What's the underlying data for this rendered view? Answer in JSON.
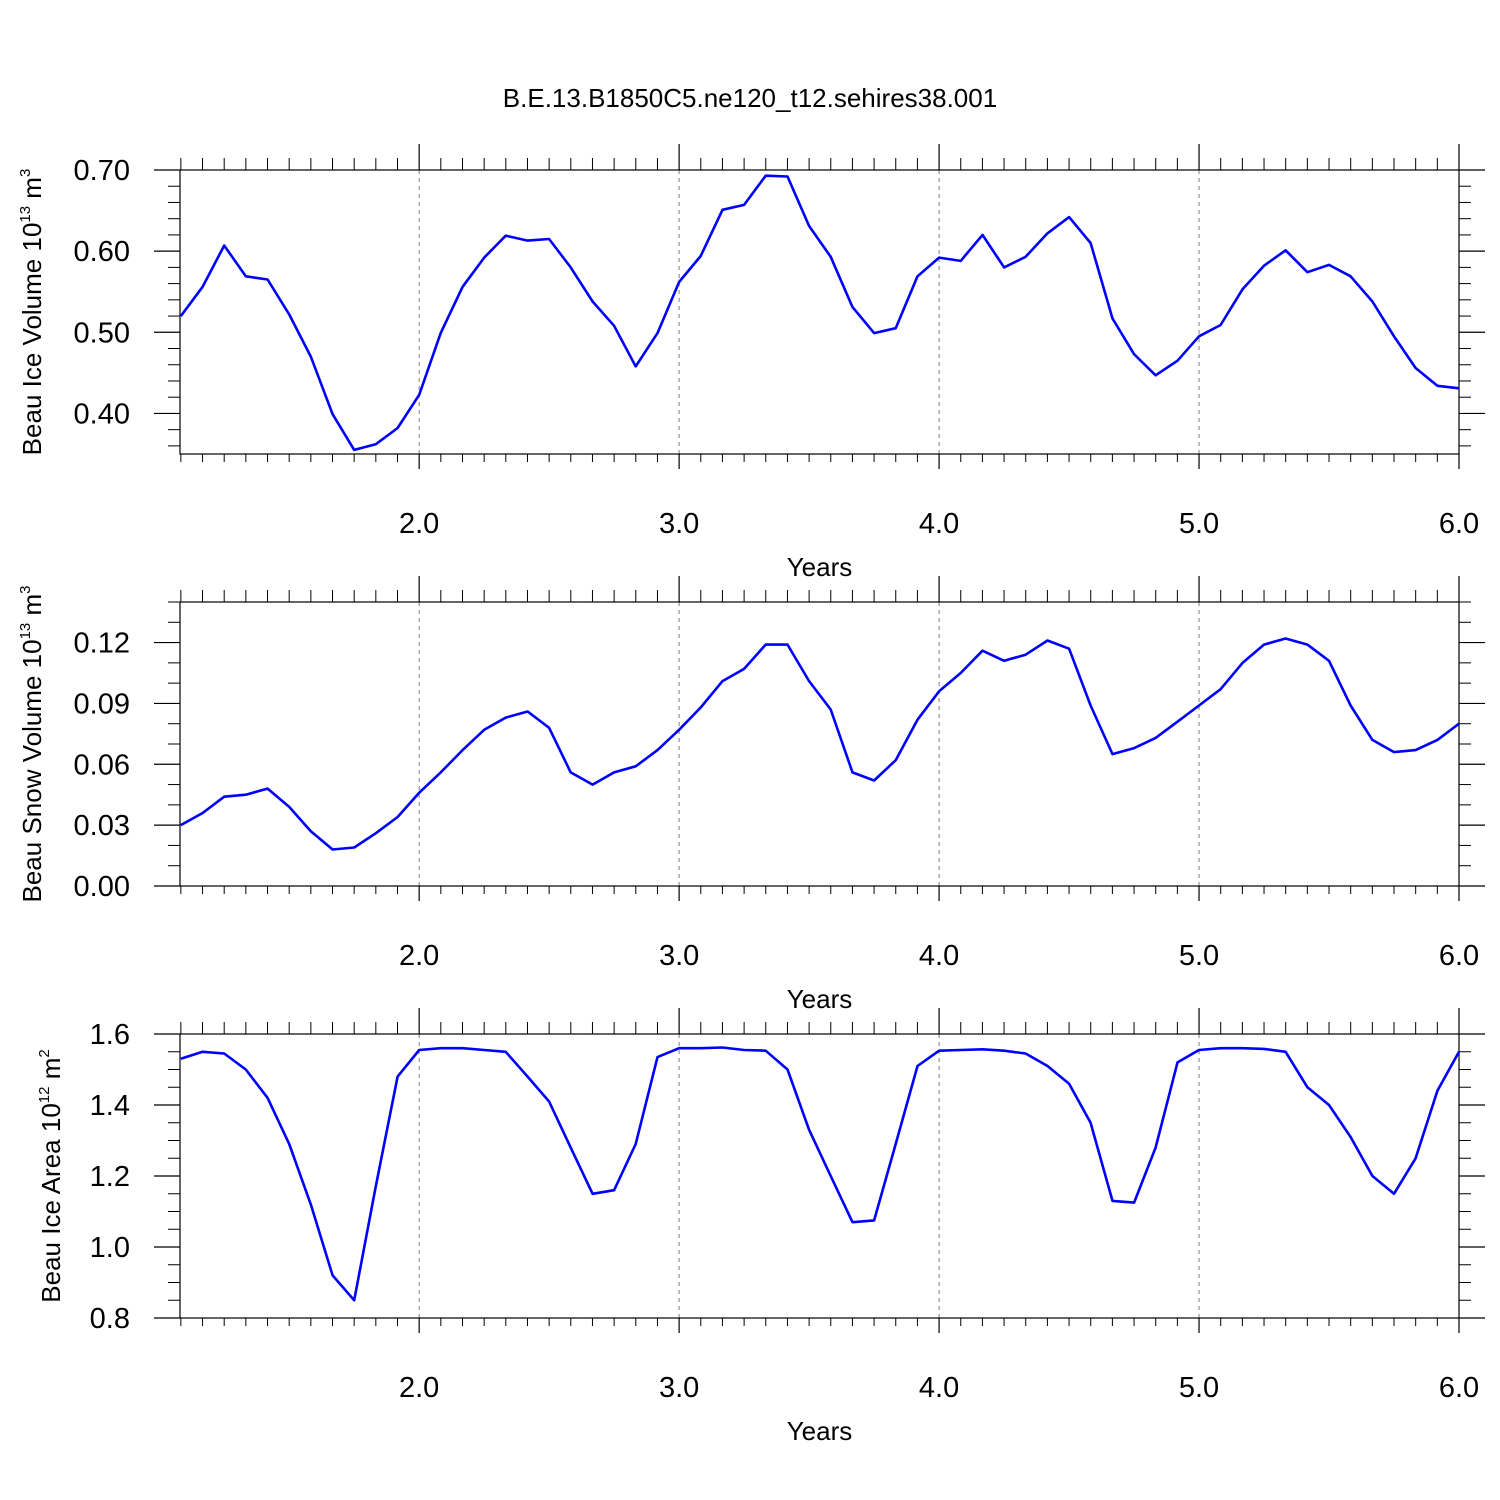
{
  "figure_title": "B.E.13.B1850C5.ne120_t12.sehires38.001",
  "chart_data": [
    {
      "type": "line",
      "ylabel": "Beau Ice Volume",
      "ylabel_unit_base": "10",
      "ylabel_unit_exp": "13",
      "ylabel_unit_m": "m",
      "ylabel_unit_m_exp": "3",
      "xlabel": "Years",
      "xlim": [
        1.08,
        6.0
      ],
      "ylim": [
        0.35,
        0.7
      ],
      "xticks": [
        2.0,
        3.0,
        4.0,
        5.0,
        6.0
      ],
      "xtick_labels": [
        "2.0",
        "3.0",
        "4.0",
        "5.0",
        "6.0"
      ],
      "yticks": [
        0.4,
        0.5,
        0.6,
        0.7
      ],
      "ytick_labels": [
        "0.40",
        "0.50",
        "0.60",
        "0.70"
      ],
      "y_minor_step": 0.02,
      "grid": "vertical dashed at major x ticks",
      "color": "#0000ff",
      "x": [
        1.083,
        1.167,
        1.25,
        1.333,
        1.417,
        1.5,
        1.583,
        1.667,
        1.75,
        1.833,
        1.917,
        2.0,
        2.083,
        2.167,
        2.25,
        2.333,
        2.417,
        2.5,
        2.583,
        2.667,
        2.75,
        2.833,
        2.917,
        3.0,
        3.083,
        3.167,
        3.25,
        3.333,
        3.417,
        3.5,
        3.583,
        3.667,
        3.75,
        3.833,
        3.917,
        4.0,
        4.083,
        4.167,
        4.25,
        4.333,
        4.417,
        4.5,
        4.583,
        4.667,
        4.75,
        4.833,
        4.917,
        5.0,
        5.083,
        5.167,
        5.25,
        5.333,
        5.417,
        5.5,
        5.583,
        5.667,
        5.75,
        5.833,
        5.917,
        6.0
      ],
      "values": [
        0.52,
        0.556,
        0.607,
        0.569,
        0.565,
        0.522,
        0.47,
        0.399,
        0.355,
        0.362,
        0.382,
        0.423,
        0.499,
        0.556,
        0.592,
        0.619,
        0.613,
        0.615,
        0.58,
        0.538,
        0.508,
        0.458,
        0.499,
        0.562,
        0.594,
        0.651,
        0.657,
        0.693,
        0.692,
        0.631,
        0.593,
        0.531,
        0.499,
        0.505,
        0.569,
        0.592,
        0.588,
        0.62,
        0.58,
        0.593,
        0.622,
        0.642,
        0.61,
        0.517,
        0.473,
        0.447,
        0.465,
        0.495,
        0.509,
        0.553,
        0.582,
        0.601,
        0.574,
        0.583,
        0.569,
        0.538,
        0.495,
        0.456,
        0.434,
        0.431
      ]
    },
    {
      "type": "line",
      "ylabel": "Beau Snow Volume",
      "ylabel_unit_base": "10",
      "ylabel_unit_exp": "13",
      "ylabel_unit_m": "m",
      "ylabel_unit_m_exp": "3",
      "xlabel": "Years",
      "xlim": [
        1.08,
        6.0
      ],
      "ylim": [
        0.0,
        0.14
      ],
      "xticks": [
        2.0,
        3.0,
        4.0,
        5.0,
        6.0
      ],
      "xtick_labels": [
        "2.0",
        "3.0",
        "4.0",
        "5.0",
        "6.0"
      ],
      "yticks": [
        0.0,
        0.03,
        0.06,
        0.09,
        0.12
      ],
      "ytick_labels": [
        "0.00",
        "0.03",
        "0.06",
        "0.09",
        "0.12"
      ],
      "y_minor_step": 0.01,
      "grid": "vertical dashed at major x ticks",
      "color": "#0000ff",
      "x": [
        1.083,
        1.167,
        1.25,
        1.333,
        1.417,
        1.5,
        1.583,
        1.667,
        1.75,
        1.833,
        1.917,
        2.0,
        2.083,
        2.167,
        2.25,
        2.333,
        2.417,
        2.5,
        2.583,
        2.667,
        2.75,
        2.833,
        2.917,
        3.0,
        3.083,
        3.167,
        3.25,
        3.333,
        3.417,
        3.5,
        3.583,
        3.667,
        3.75,
        3.833,
        3.917,
        4.0,
        4.083,
        4.167,
        4.25,
        4.333,
        4.417,
        4.5,
        4.583,
        4.667,
        4.75,
        4.833,
        4.917,
        5.0,
        5.083,
        5.167,
        5.25,
        5.333,
        5.417,
        5.5,
        5.583,
        5.667,
        5.75,
        5.833,
        5.917,
        6.0
      ],
      "values": [
        0.03,
        0.036,
        0.044,
        0.045,
        0.048,
        0.039,
        0.027,
        0.018,
        0.019,
        0.026,
        0.034,
        0.046,
        0.056,
        0.067,
        0.077,
        0.083,
        0.086,
        0.078,
        0.056,
        0.05,
        0.056,
        0.059,
        0.067,
        0.077,
        0.088,
        0.101,
        0.107,
        0.119,
        0.119,
        0.101,
        0.087,
        0.056,
        0.052,
        0.062,
        0.082,
        0.096,
        0.105,
        0.116,
        0.111,
        0.114,
        0.121,
        0.117,
        0.089,
        0.065,
        0.068,
        0.073,
        0.081,
        0.089,
        0.097,
        0.11,
        0.119,
        0.122,
        0.119,
        0.111,
        0.089,
        0.072,
        0.066,
        0.067,
        0.072,
        0.08
      ]
    },
    {
      "type": "line",
      "ylabel": "Beau Ice Area",
      "ylabel_unit_base": "10",
      "ylabel_unit_exp": "12",
      "ylabel_unit_m": "m",
      "ylabel_unit_m_exp": "2",
      "xlabel": "Years",
      "xlim": [
        1.08,
        6.0
      ],
      "ylim": [
        0.8,
        1.6
      ],
      "xticks": [
        2.0,
        3.0,
        4.0,
        5.0,
        6.0
      ],
      "xtick_labels": [
        "2.0",
        "3.0",
        "4.0",
        "5.0",
        "6.0"
      ],
      "yticks": [
        0.8,
        1.0,
        1.2,
        1.4,
        1.6
      ],
      "ytick_labels": [
        "0.8",
        "1.0",
        "1.2",
        "1.4",
        "1.6"
      ],
      "y_minor_step": 0.05,
      "grid": "vertical dashed at major x ticks",
      "color": "#0000ff",
      "x": [
        1.083,
        1.167,
        1.25,
        1.333,
        1.417,
        1.5,
        1.583,
        1.667,
        1.75,
        1.833,
        1.917,
        2.0,
        2.083,
        2.167,
        2.25,
        2.333,
        2.417,
        2.5,
        2.583,
        2.667,
        2.75,
        2.833,
        2.917,
        3.0,
        3.083,
        3.167,
        3.25,
        3.333,
        3.417,
        3.5,
        3.583,
        3.667,
        3.75,
        3.833,
        3.917,
        4.0,
        4.083,
        4.167,
        4.25,
        4.333,
        4.417,
        4.5,
        4.583,
        4.667,
        4.75,
        4.833,
        4.917,
        5.0,
        5.083,
        5.167,
        5.25,
        5.333,
        5.417,
        5.5,
        5.583,
        5.667,
        5.75,
        5.833,
        5.917,
        6.0
      ],
      "values": [
        1.53,
        1.55,
        1.545,
        1.5,
        1.42,
        1.29,
        1.12,
        0.92,
        0.85,
        1.17,
        1.48,
        1.555,
        1.56,
        1.56,
        1.555,
        1.55,
        1.48,
        1.41,
        1.28,
        1.15,
        1.16,
        1.29,
        1.535,
        1.56,
        1.56,
        1.562,
        1.555,
        1.553,
        1.5,
        1.33,
        1.2,
        1.07,
        1.075,
        1.29,
        1.51,
        1.553,
        1.555,
        1.557,
        1.553,
        1.545,
        1.51,
        1.46,
        1.35,
        1.13,
        1.125,
        1.28,
        1.52,
        1.555,
        1.56,
        1.56,
        1.558,
        1.55,
        1.45,
        1.4,
        1.31,
        1.2,
        1.15,
        1.25,
        1.44,
        1.55
      ]
    }
  ]
}
